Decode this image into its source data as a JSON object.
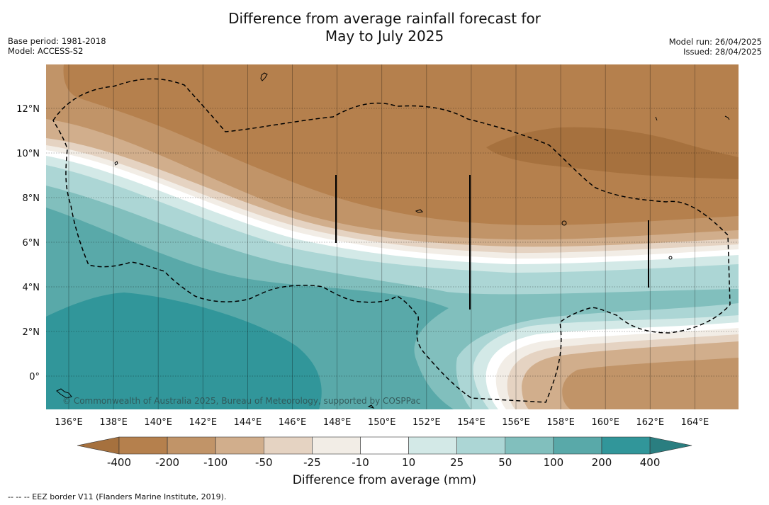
{
  "header": {
    "title_line1": "Difference from average rainfall forecast for",
    "title_line2": "May to July 2025",
    "base_period": "Base period: 1981-2018",
    "model": "Model: ACCESS-S2",
    "model_run": "Model run: 26/04/2025",
    "issued": "Issued: 28/04/2025"
  },
  "map": {
    "lon_ticks": [
      "136°E",
      "138°E",
      "140°E",
      "142°E",
      "144°E",
      "146°E",
      "148°E",
      "150°E",
      "152°E",
      "154°E",
      "156°E",
      "158°E",
      "160°E",
      "162°E",
      "164°E"
    ],
    "lat_ticks": [
      "12°N",
      "10°N",
      "8°N",
      "6°N",
      "4°N",
      "2°N",
      "0°"
    ],
    "copyright": "© Commonwealth of Australia 2025, Bureau of Meteorology, supported by COSPPac"
  },
  "colorbar": {
    "ticks": [
      "-400",
      "-200",
      "-100",
      "-50",
      "-25",
      "-10",
      "10",
      "25",
      "50",
      "100",
      "200",
      "400"
    ],
    "colors": [
      "#a6713e",
      "#b5804d",
      "#c19468",
      "#d1ae8c",
      "#e5d3c2",
      "#f2ede6",
      "#ffffff",
      "#d3e9e7",
      "#acd6d5",
      "#81bfbd",
      "#59a9a9",
      "#31969a",
      "#2a7e80"
    ],
    "label": "Difference from average (mm)"
  },
  "footnote": "--  --  -- EEZ border V11 (Flanders Marine Institute, 2019)."
}
